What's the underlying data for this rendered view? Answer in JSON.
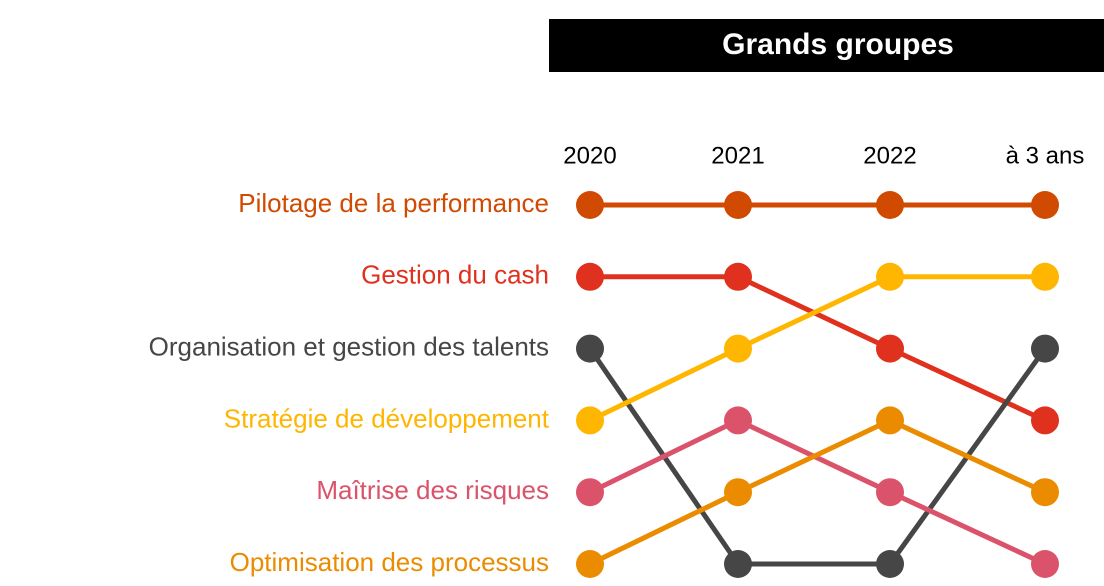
{
  "chart_data": {
    "type": "bump",
    "title": "Grands groupes",
    "categories": [
      "2020",
      "2021",
      "2022",
      "à 3 ans"
    ],
    "ylim": [
      1,
      6
    ],
    "y_inverted": true,
    "series": [
      {
        "name": "Pilotage de la performance",
        "color": "#d04a02",
        "values": [
          1,
          1,
          1,
          1
        ]
      },
      {
        "name": "Gestion du cash",
        "color": "#e0301e",
        "values": [
          2,
          2,
          3,
          4
        ]
      },
      {
        "name": "Organisation et gestion des talents",
        "color": "#464646",
        "values": [
          3,
          6,
          6,
          3
        ]
      },
      {
        "name": "Stratégie de développement",
        "color": "#ffb600",
        "values": [
          4,
          3,
          2,
          2
        ]
      },
      {
        "name": "Maîtrise des risques",
        "color": "#db536a",
        "values": [
          5,
          4,
          5,
          6
        ]
      },
      {
        "name": "Optimisation des processus",
        "color": "#eb8c00",
        "values": [
          6,
          5,
          4,
          5
        ]
      }
    ]
  }
}
